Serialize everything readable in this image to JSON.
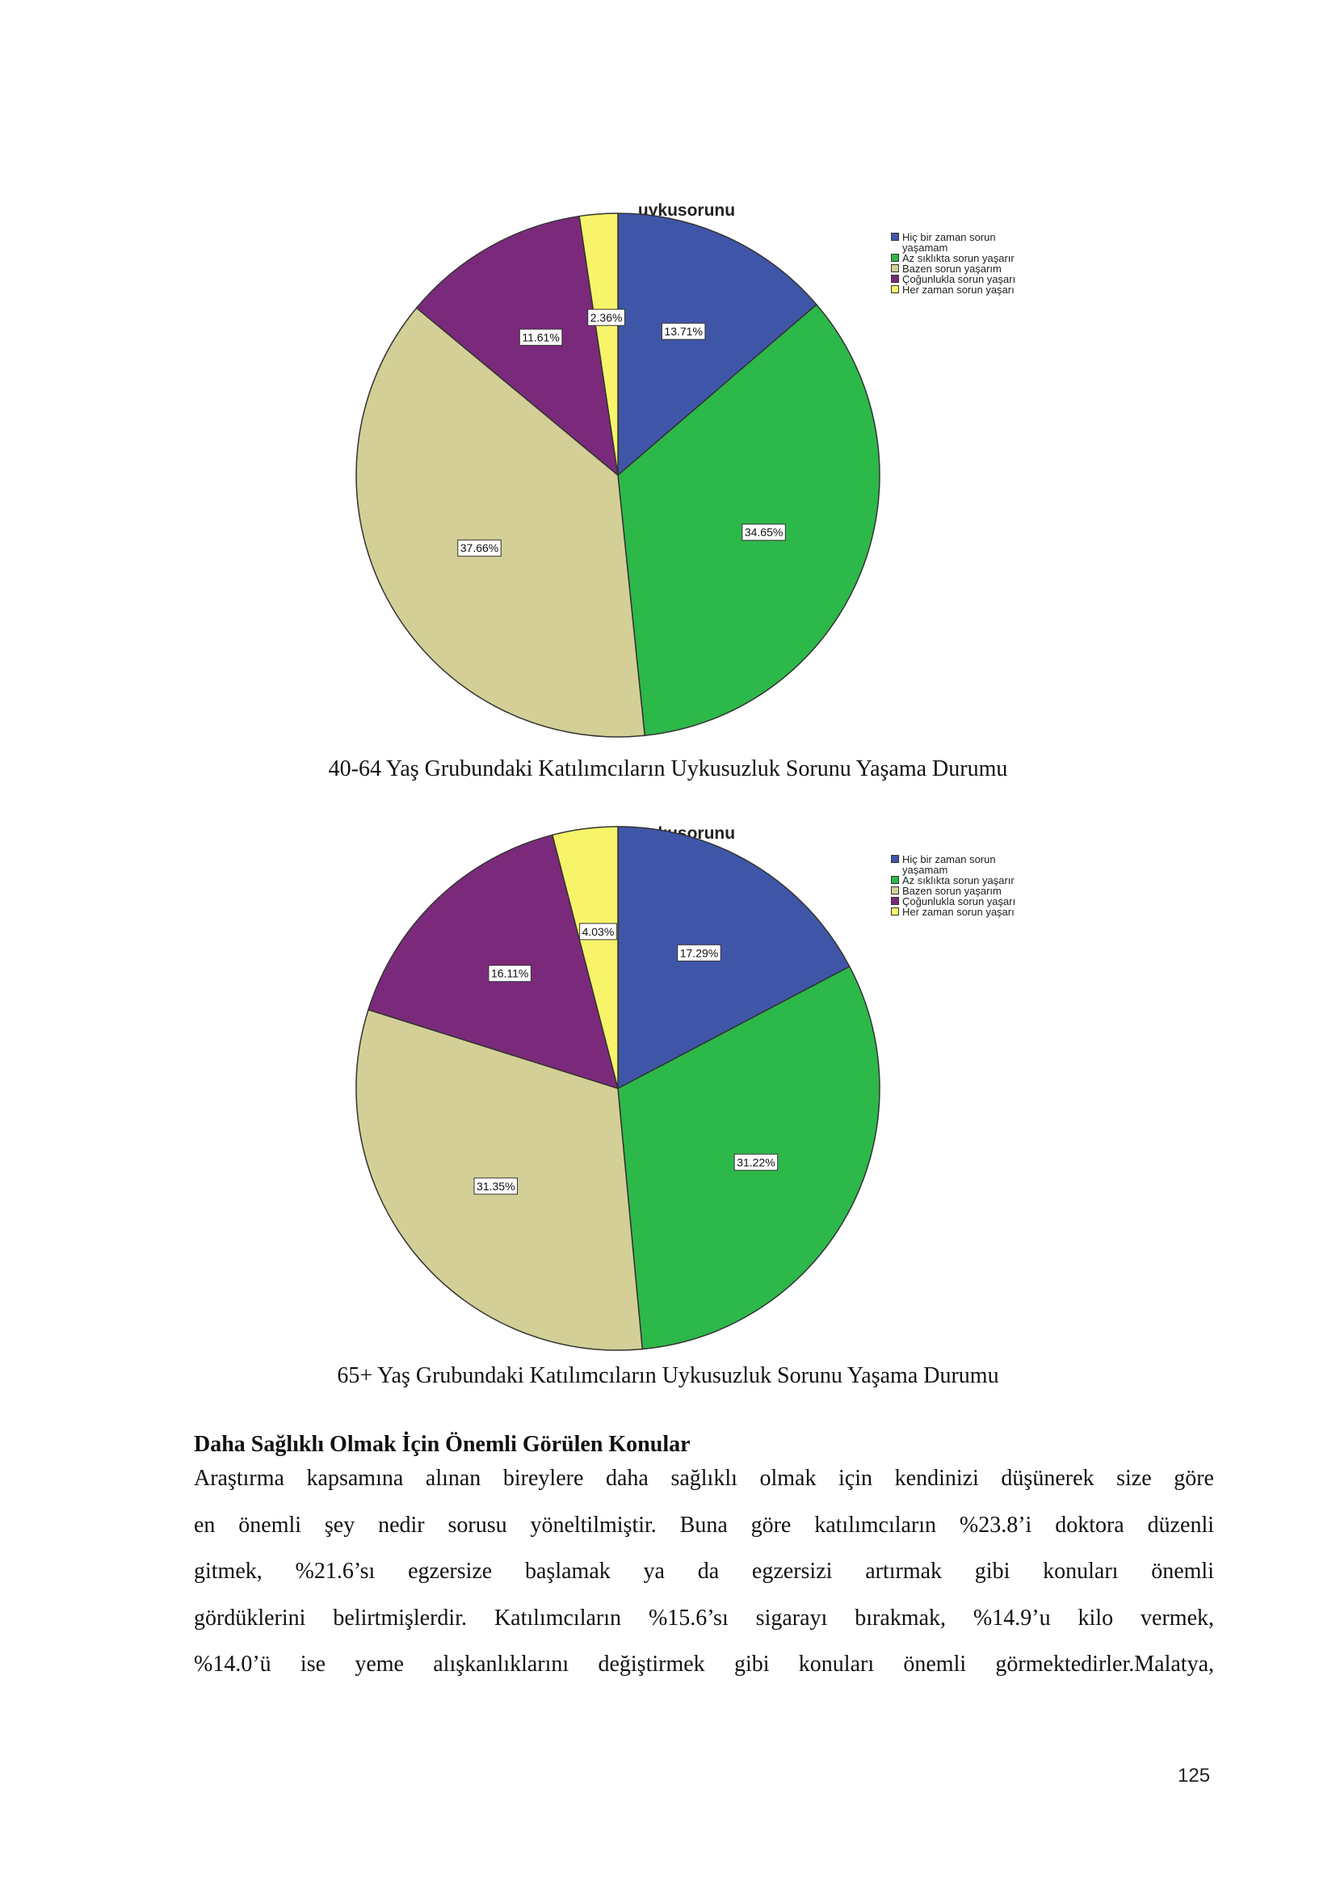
{
  "chart_data": [
    {
      "type": "pie",
      "title": "uykusorunu",
      "caption": "40-64 Yaş Grubundaki Katılımcıların Uykusuzluk Sorunu Yaşama Durumu",
      "categories": [
        "Hiç bir zaman sorun yaşamam",
        "Az sıklıkta sorun yaşarır",
        "Bazen sorun yaşarım",
        "Çoğunlukla sorun yaşarı",
        "Her zaman sorun yaşarı"
      ],
      "values": [
        13.71,
        34.65,
        37.66,
        11.61,
        2.36
      ],
      "value_labels": [
        "13.71%",
        "34.65%",
        "37.66%",
        "11.61%",
        "2.36%"
      ],
      "colors": [
        "#3f56a8",
        "#2db84a",
        "#d3cf96",
        "#7b2a7b",
        "#f7f46a"
      ]
    },
    {
      "type": "pie",
      "title": "uykusorunu",
      "caption": "65+ Yaş Grubundaki Katılımcıların Uykusuzluk Sorunu Yaşama Durumu",
      "categories": [
        "Hiç bir zaman sorun yaşamam",
        "Az sıklıkta sorun yaşarır",
        "Bazen sorun yaşarım",
        "Çoğunlukla sorun yaşarı",
        "Her zaman sorun yaşarı"
      ],
      "values": [
        17.29,
        31.22,
        31.35,
        16.11,
        4.03
      ],
      "value_labels": [
        "17.29%",
        "31.22%",
        "31.35%",
        "16.11%",
        "4.03%"
      ],
      "colors": [
        "#3f56a8",
        "#2db84a",
        "#d3cf96",
        "#7b2a7b",
        "#f7f46a"
      ]
    }
  ],
  "heading": "Daha Sağlıklı Olmak İçin Önemli Görülen Konular",
  "body_lines": [
    "Araştırma kapsamına alınan bireylere daha sağlıklı olmak için kendinizi düşünerek size göre",
    "en önemli şey nedir sorusu yöneltilmiştir. Buna göre katılımcıların %23.8’i doktora düzenli",
    "gitmek, %21.6’sı egzersize başlamak ya da egzersizi artırmak gibi konuları önemli",
    "gördüklerini belirtmişlerdir. Katılımcıların %15.6’sı sigarayı bırakmak, %14.9’u kilo vermek,",
    "%14.0’ü ise yeme alışkanlıklarını değiştirmek gibi konuları önemli görmektedirler.Malatya,"
  ],
  "page_number": "125"
}
